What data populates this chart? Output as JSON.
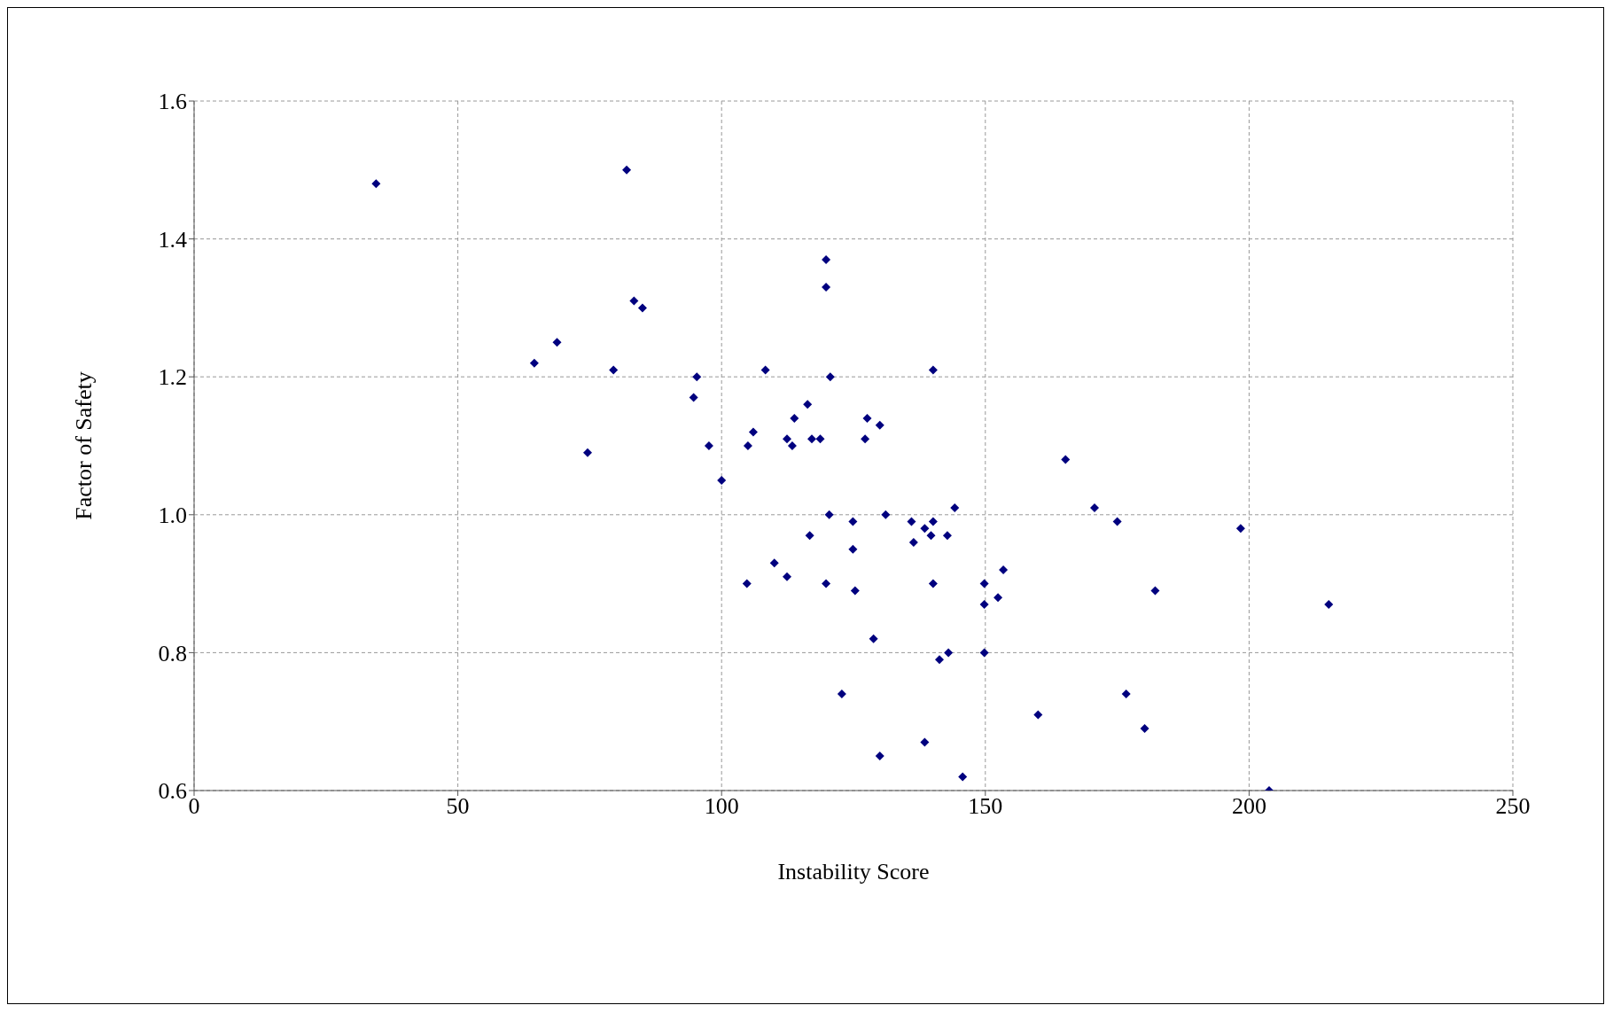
{
  "chart_data": {
    "type": "scatter",
    "xlabel": "Instability Score",
    "ylabel": "Factor of Safety",
    "x": [
      34.5,
      82,
      83.4,
      85,
      64.5,
      68.8,
      79.5,
      74.6,
      95.3,
      94.7,
      97.6,
      100,
      105,
      106,
      108.3,
      104.8,
      110,
      112.4,
      112.4,
      113.4,
      113.8,
      116.3,
      117.1,
      118.7,
      116.7,
      119.8,
      119.8,
      120.6,
      120.4,
      119.8,
      122.8,
      124.9,
      124.9,
      125.3,
      127.2,
      127.6,
      130,
      128.8,
      130,
      131.1,
      136,
      136.4,
      138.5,
      140.1,
      139.7,
      140.1,
      140.1,
      138.5,
      141.3,
      142.8,
      143,
      144.2,
      145.7,
      149.8,
      149.8,
      149.8,
      152.4,
      153.4,
      160,
      165.2,
      170.7,
      175,
      176.7,
      180.2,
      182.2,
      198.4,
      203.8,
      215.1
    ],
    "values": [
      1.48,
      1.5,
      1.31,
      1.3,
      1.22,
      1.25,
      1.21,
      1.09,
      1.2,
      1.17,
      1.1,
      1.05,
      1.1,
      1.12,
      1.21,
      0.9,
      0.93,
      0.91,
      1.11,
      1.1,
      1.14,
      1.16,
      1.11,
      1.11,
      0.97,
      1.37,
      1.33,
      1.2,
      1,
      0.9,
      0.74,
      0.99,
      0.95,
      0.89,
      1.11,
      1.14,
      1.13,
      0.82,
      0.65,
      1,
      0.99,
      0.96,
      0.98,
      0.99,
      0.97,
      1.21,
      0.9,
      0.67,
      0.79,
      0.97,
      0.8,
      1.01,
      0.62,
      0.9,
      0.87,
      0.8,
      0.88,
      0.92,
      0.71,
      1.08,
      1.01,
      0.99,
      0.74,
      0.69,
      0.89,
      0.98,
      0.6,
      0.87
    ],
    "color": "#00007f",
    "marker": "diamond",
    "grid": true,
    "legend": false,
    "xlim": [
      0,
      250
    ],
    "xticks": [
      0,
      50,
      100,
      150,
      200,
      250
    ],
    "ylim": [
      0.6,
      1.6
    ],
    "yticks": [
      0.6,
      0.8,
      {
        "value": 1,
        "label": "1.0"
      },
      1.2,
      1.4,
      1.6
    ]
  }
}
